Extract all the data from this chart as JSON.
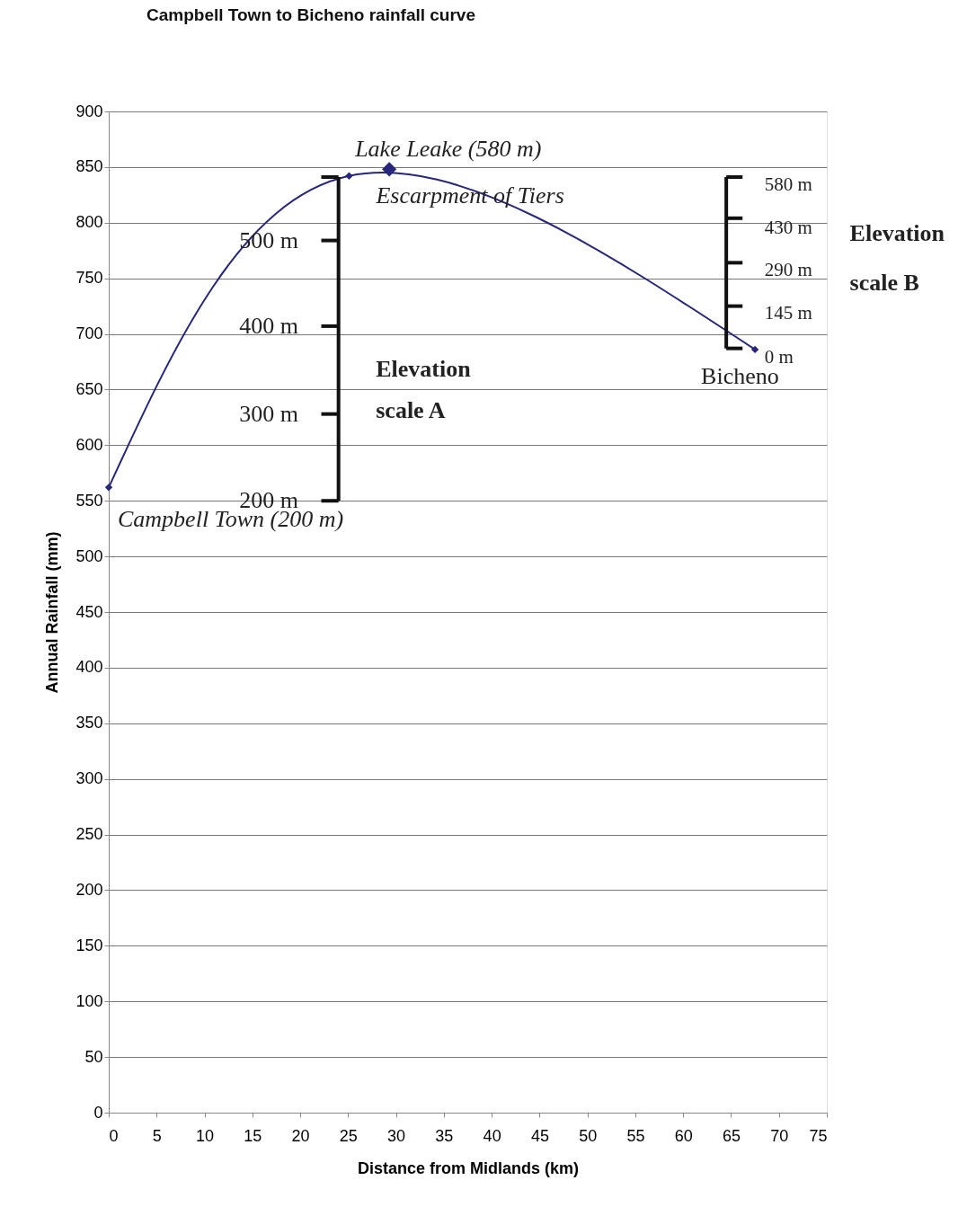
{
  "chart_data": {
    "type": "line",
    "title": "Campbell Town to Bicheno rainfall curve",
    "xlabel": "Distance from Midlands (km)",
    "ylabel": "Annual Rainfall (mm)",
    "series": [
      {
        "type": "line",
        "color": "#26267a",
        "x": [
          0,
          25.1,
          67.5
        ],
        "values": [
          562,
          842,
          686
        ],
        "marker": "diamond"
      },
      {
        "type": "scatter",
        "color": "#26267a",
        "x": [
          29.3
        ],
        "values": [
          848
        ],
        "marker": "diamond"
      }
    ],
    "xlim": [
      0,
      75
    ],
    "xticks": [
      0,
      5,
      10,
      15,
      20,
      25,
      30,
      35,
      40,
      45,
      50,
      55,
      60,
      65,
      70,
      75
    ],
    "ylim": [
      0,
      900
    ],
    "yticks": [
      0,
      50,
      100,
      150,
      200,
      250,
      300,
      350,
      400,
      450,
      500,
      550,
      600,
      650,
      700,
      750,
      800,
      850,
      900
    ],
    "grid": "y",
    "legend": false,
    "annotations": [
      {
        "text": "Lake Leake (580 m)",
        "x": 29.3,
        "y": 848
      },
      {
        "text": "Escarpment of Tiers",
        "x": 25.1,
        "y": 842
      },
      {
        "text": "Campbell Town (200 m)",
        "x": 0,
        "y": 562
      },
      {
        "text": "Bicheno",
        "x": 67.5,
        "y": 686
      },
      "200 m",
      "300 m",
      "400 m",
      "500 m",
      "Elevation",
      "scale A",
      "580 m",
      "430 m",
      "290 m",
      "145 m",
      "0 m",
      "Elevation",
      "scale B"
    ]
  }
}
